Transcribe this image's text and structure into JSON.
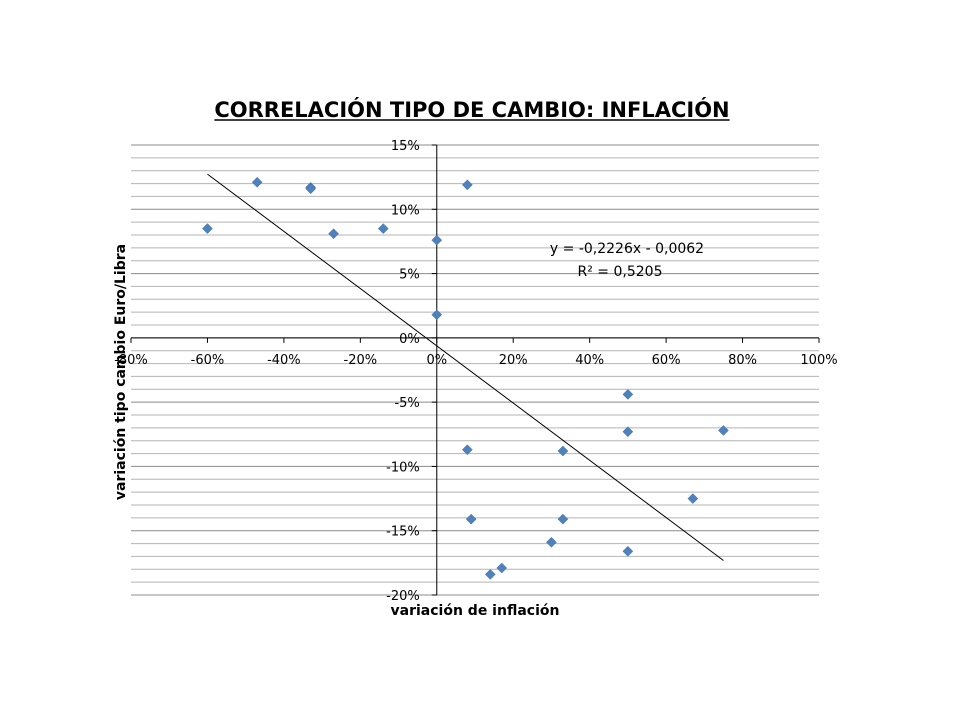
{
  "chart_data": {
    "type": "scatter",
    "title": "CORRELACIÓN TIPO DE CAMBIO: INFLACIÓN",
    "xlabel": "variación de inflación",
    "ylabel": "variación tipo cambio Euro/Libra",
    "xlim": [
      -0.8,
      1.0
    ],
    "ylim": [
      -0.2,
      0.15
    ],
    "x_ticks": [
      -0.8,
      -0.6,
      -0.4,
      -0.2,
      0.0,
      0.2,
      0.4,
      0.6,
      0.8,
      1.0
    ],
    "x_tick_labels": [
      "-80%",
      "-60%",
      "-40%",
      "-20%",
      "0%",
      "20%",
      "40%",
      "60%",
      "80%",
      "100%"
    ],
    "y_ticks": [
      0.15,
      0.1,
      0.05,
      0.0,
      -0.05,
      -0.1,
      -0.15,
      -0.2
    ],
    "y_tick_labels": [
      "15%",
      "10%",
      "5%",
      "0%",
      "-5%",
      "-10%",
      "-15%",
      "-20%"
    ],
    "grid": true,
    "marker_color": "#4f81bd",
    "points": [
      {
        "x": -0.6,
        "y": 0.085
      },
      {
        "x": -0.47,
        "y": 0.121
      },
      {
        "x": -0.33,
        "y": 0.117
      },
      {
        "x": -0.33,
        "y": 0.116
      },
      {
        "x": -0.27,
        "y": 0.081
      },
      {
        "x": -0.14,
        "y": 0.085
      },
      {
        "x": 0.0,
        "y": 0.076
      },
      {
        "x": 0.0,
        "y": 0.018
      },
      {
        "x": 0.08,
        "y": 0.119
      },
      {
        "x": 0.08,
        "y": -0.087
      },
      {
        "x": 0.09,
        "y": -0.141
      },
      {
        "x": 0.14,
        "y": -0.184
      },
      {
        "x": 0.17,
        "y": -0.179
      },
      {
        "x": 0.3,
        "y": -0.159
      },
      {
        "x": 0.33,
        "y": -0.088
      },
      {
        "x": 0.33,
        "y": -0.141
      },
      {
        "x": 0.5,
        "y": -0.044
      },
      {
        "x": 0.5,
        "y": -0.073
      },
      {
        "x": 0.5,
        "y": -0.166
      },
      {
        "x": 0.67,
        "y": -0.125
      },
      {
        "x": 0.75,
        "y": -0.072
      }
    ],
    "trendline": {
      "type": "linear",
      "slope": -0.2226,
      "intercept": -0.0062,
      "x_range": [
        -0.6,
        0.75
      ],
      "equation_label": "y = -0,2226x - 0,0062",
      "r2_label": "R² = 0,5205"
    }
  }
}
